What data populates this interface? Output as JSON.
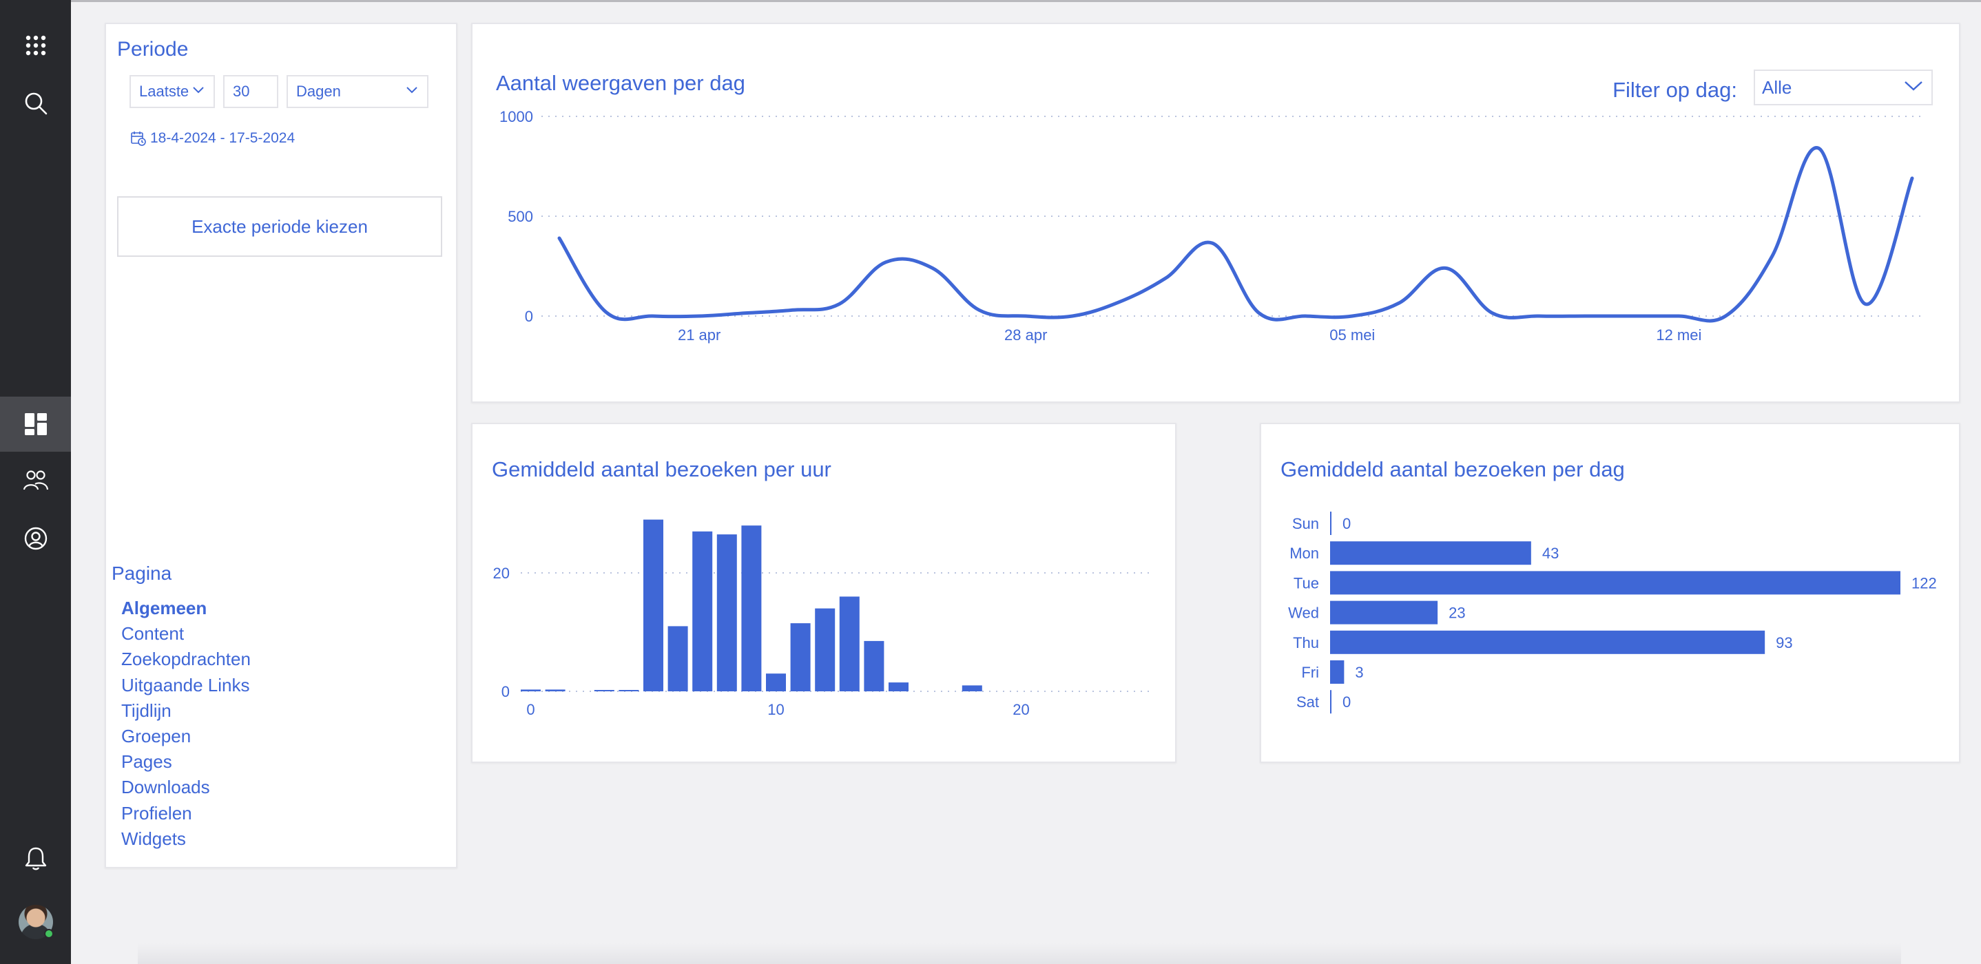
{
  "colors": {
    "accent": "#3f67d6",
    "rail": "#28292d",
    "rail_active": "#48494e",
    "card": "#ffffff",
    "page": "#f1f1f3"
  },
  "rail": {
    "top_items": [
      "apps-grid-icon",
      "search-icon"
    ],
    "middle_items": [
      "dashboard-icon",
      "groups-icon",
      "profile-icon"
    ],
    "bottom_items": [
      "bell-icon",
      "avatar"
    ],
    "active": "dashboard-icon"
  },
  "period": {
    "title": "Periode",
    "mode": "Laatste",
    "amount": "30",
    "unit": "Dagen",
    "date_range": "18-4-2024 - 17-5-2024",
    "exact_button": "Exacte periode kiezen"
  },
  "page_nav": {
    "title": "Pagina",
    "items": [
      "Algemeen",
      "Content",
      "Zoekopdrachten",
      "Uitgaande Links",
      "Tijdlijn",
      "Groepen",
      "Pages",
      "Downloads",
      "Profielen",
      "Widgets"
    ],
    "active": "Algemeen"
  },
  "views_chart": {
    "title": "Aantal weergaven per dag",
    "filter_label": "Filter op dag:",
    "filter_value": "Alle"
  },
  "hour_chart": {
    "title": "Gemiddeld aantal bezoeken per uur"
  },
  "day_chart": {
    "title": "Gemiddeld aantal bezoeken per dag"
  },
  "chart_data": [
    {
      "type": "line",
      "title": "Aantal weergaven per dag",
      "x": [
        "2024-04-18",
        "2024-04-19",
        "2024-04-20",
        "2024-04-21",
        "2024-04-22",
        "2024-04-23",
        "2024-04-24",
        "2024-04-25",
        "2024-04-26",
        "2024-04-27",
        "2024-04-28",
        "2024-04-29",
        "2024-04-30",
        "2024-05-01",
        "2024-05-02",
        "2024-05-03",
        "2024-05-04",
        "2024-05-05",
        "2024-05-06",
        "2024-05-07",
        "2024-05-08",
        "2024-05-09",
        "2024-05-10",
        "2024-05-11",
        "2024-05-12",
        "2024-05-13",
        "2024-05-14",
        "2024-05-15",
        "2024-05-16",
        "2024-05-17"
      ],
      "y": [
        390,
        20,
        0,
        0,
        15,
        30,
        60,
        270,
        240,
        30,
        0,
        0,
        70,
        190,
        365,
        15,
        0,
        0,
        65,
        240,
        15,
        0,
        0,
        0,
        0,
        0,
        300,
        840,
        60,
        690
      ],
      "ylim": [
        0,
        1000
      ],
      "yticks": [
        0,
        500,
        1000
      ],
      "xtick_labels": [
        "21 apr",
        "28 apr",
        "05 mei",
        "12 mei"
      ],
      "grid": true
    },
    {
      "type": "bar",
      "title": "Gemiddeld aantal bezoeken per uur",
      "categories": [
        0,
        1,
        2,
        3,
        4,
        5,
        6,
        7,
        8,
        9,
        10,
        11,
        12,
        13,
        14,
        15,
        16,
        17,
        18,
        19,
        20,
        21,
        22,
        23
      ],
      "values": [
        0.3,
        0.3,
        0,
        0.2,
        0.2,
        29,
        11,
        27,
        26.5,
        28,
        3,
        11.5,
        14,
        16,
        8.5,
        1.5,
        0,
        0,
        1,
        0,
        0,
        0,
        0,
        0
      ],
      "ylim": [
        0,
        30
      ],
      "yticks": [
        0,
        20
      ],
      "xticks": [
        0,
        10,
        20
      ],
      "grid": true
    },
    {
      "type": "bar",
      "orientation": "horizontal",
      "title": "Gemiddeld aantal bezoeken per dag",
      "categories": [
        "Sun",
        "Mon",
        "Tue",
        "Wed",
        "Thu",
        "Fri",
        "Sat"
      ],
      "values": [
        0,
        43,
        122,
        23,
        93,
        3,
        0
      ],
      "data_labels": true
    }
  ]
}
